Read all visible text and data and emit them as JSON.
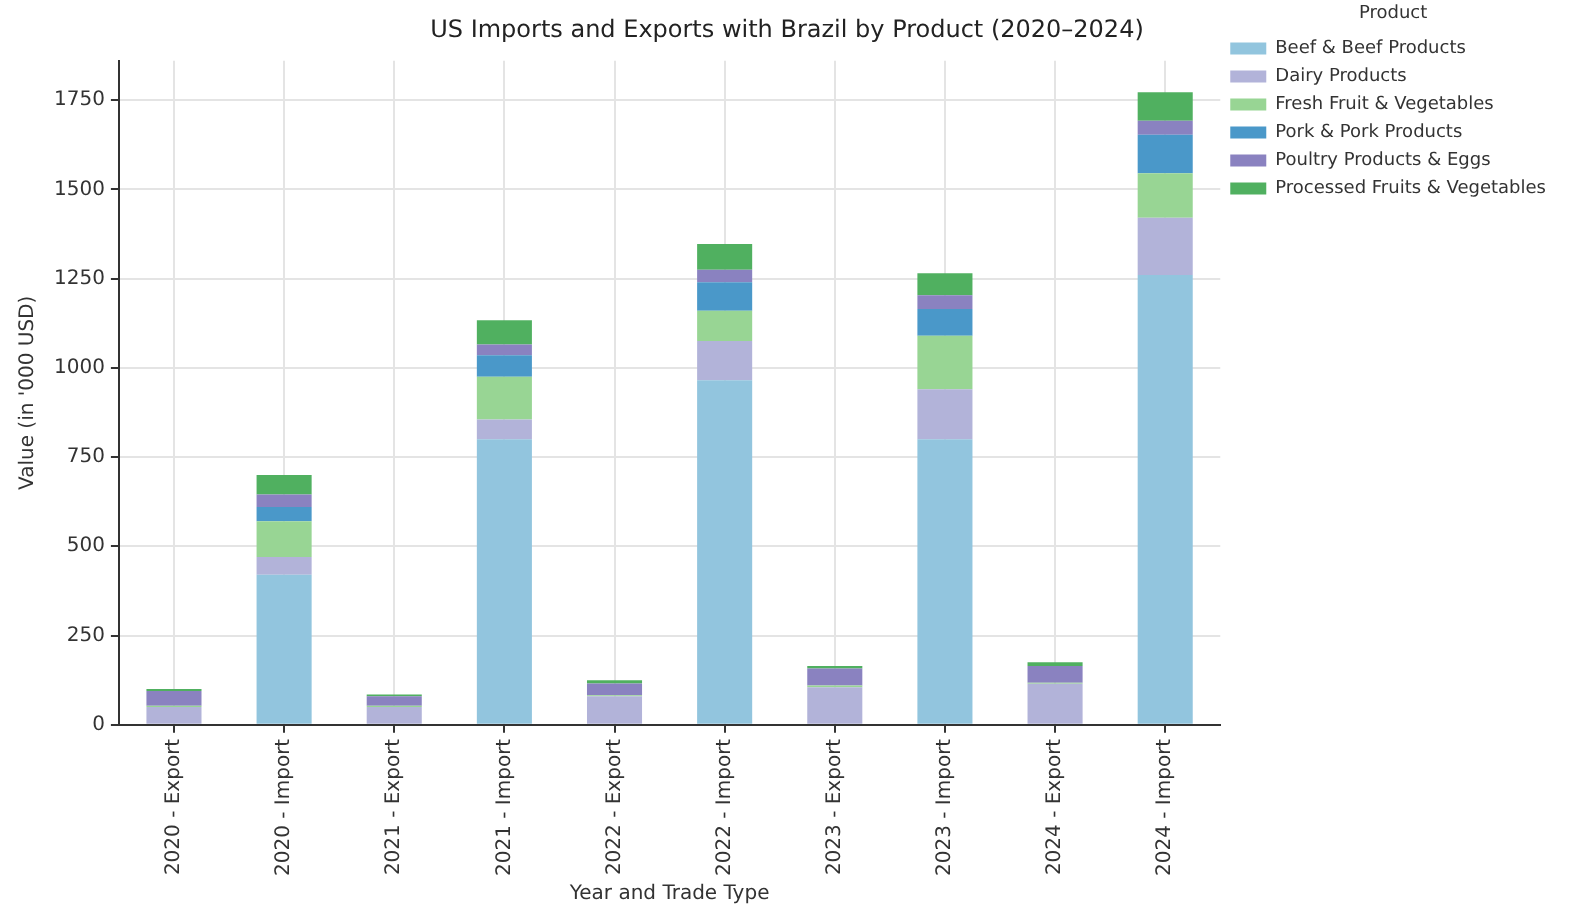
{
  "chart_data": {
    "type": "bar",
    "title": "US Imports and Exports with Brazil by Product (2020–2024)",
    "xlabel": "Year and Trade Type",
    "ylabel": "Value (in '000 USD)",
    "legend_title": "Product",
    "categories": [
      "2020 - Export",
      "2020 - Import",
      "2021 - Export",
      "2021 - Import",
      "2022 - Export",
      "2022 - Import",
      "2023 - Export",
      "2023 - Import",
      "2024 - Export",
      "2024 - Import"
    ],
    "stacked": true,
    "ylim": [
      0,
      1860
    ],
    "yticks": [
      0,
      250,
      500,
      750,
      1000,
      1250,
      1500,
      1750
    ],
    "grid": true,
    "legend": "right",
    "series": [
      {
        "name": "Beef & Beef Products",
        "color": "#92c5de",
        "values": [
          0,
          420,
          0,
          800,
          0,
          965,
          0,
          800,
          0,
          1260
        ]
      },
      {
        "name": "Dairy Products",
        "color": "#b2b3d9",
        "values": [
          50,
          50,
          50,
          55,
          80,
          110,
          105,
          140,
          115,
          160
        ]
      },
      {
        "name": "Fresh Fruit & Vegetables",
        "color": "#98d594",
        "values": [
          3,
          100,
          3,
          120,
          3,
          85,
          5,
          150,
          3,
          125
        ]
      },
      {
        "name": "Pork & Pork Products",
        "color": "#4a98c9",
        "values": [
          0,
          40,
          0,
          60,
          0,
          80,
          0,
          75,
          0,
          108
        ]
      },
      {
        "name": "Poultry Products & Eggs",
        "color": "#8a82c0",
        "values": [
          42,
          35,
          27,
          30,
          33,
          35,
          48,
          38,
          47,
          39
        ]
      },
      {
        "name": "Processed Fruits & Vegetables",
        "color": "#50b060",
        "values": [
          5,
          55,
          5,
          68,
          9,
          72,
          7,
          62,
          10,
          80
        ]
      }
    ]
  }
}
